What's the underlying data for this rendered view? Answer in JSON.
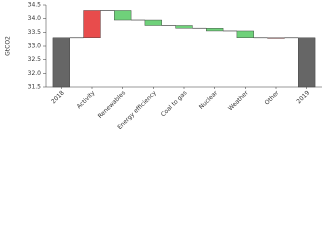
{
  "chart_data": {
    "type": "waterfall",
    "y_label": "GtCO2",
    "categories": [
      "2018",
      "Activity",
      "Renewables",
      "Energy efficiency",
      "Coal to gas",
      "Nuclear",
      "Weather",
      "Other",
      "2019"
    ],
    "values": [
      33.3,
      1.0,
      -0.35,
      -0.2,
      -0.1,
      -0.1,
      -0.25,
      0,
      33.3
    ],
    "is_total": [
      true,
      false,
      false,
      false,
      false,
      false,
      false,
      false,
      true
    ],
    "colors": {
      "total": "#666666",
      "increase": "#e84c4c",
      "decrease": "#6fd17a"
    },
    "ylim": [
      31.5,
      34.5
    ],
    "yticks": [
      31.5,
      32.0,
      32.5,
      33.0,
      33.5,
      34.0,
      34.5
    ]
  }
}
